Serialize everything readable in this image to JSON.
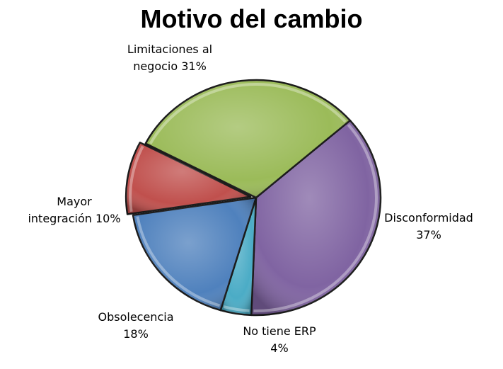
{
  "chart_data": {
    "type": "pie",
    "title": "Motivo del cambio",
    "slices": [
      {
        "label_lines": [
          "Disconformidad",
          "37%"
        ],
        "name": "Disconformidad",
        "value": 37,
        "color": "#8064A2"
      },
      {
        "label_lines": [
          "No tiene ERP",
          "4%"
        ],
        "name": "No tiene ERP",
        "value": 4,
        "color": "#4BACC6"
      },
      {
        "label_lines": [
          "Obsolecencia",
          "18%"
        ],
        "name": "Obsolecencia",
        "value": 18,
        "color": "#4F81BD"
      },
      {
        "label_lines": [
          "Mayor",
          "integración 10%"
        ],
        "name": "Mayor integración",
        "value": 10,
        "color": "#C0504D"
      },
      {
        "label_lines": [
          "Limitaciones al",
          "negocio 31%"
        ],
        "name": "Limitaciones al negocio",
        "value": 31,
        "color": "#9BBB59"
      }
    ],
    "legend": "none"
  }
}
